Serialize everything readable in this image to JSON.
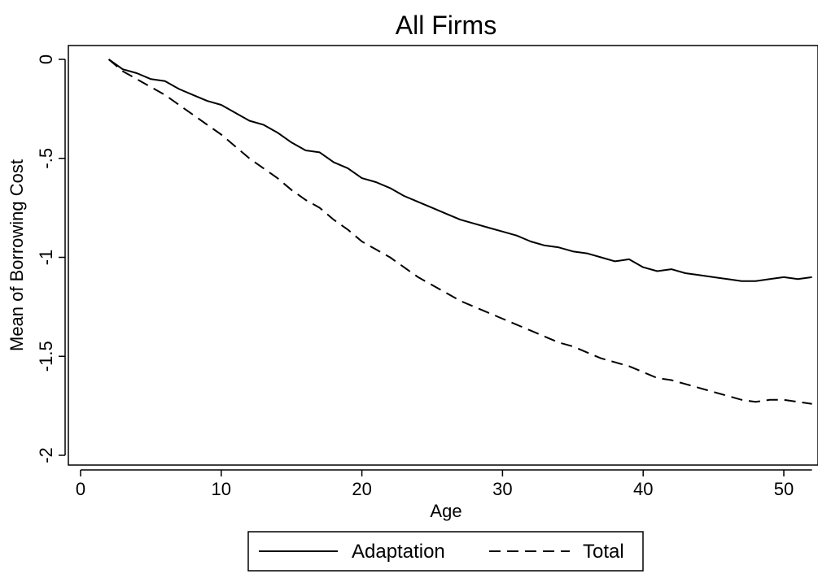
{
  "chart_data": {
    "type": "line",
    "title": "All Firms",
    "xlabel": "Age",
    "ylabel": "Mean of Borrowing Cost",
    "xlim": [
      0,
      52
    ],
    "ylim": [
      -2,
      0
    ],
    "xticks": [
      0,
      10,
      20,
      30,
      40,
      50
    ],
    "xtick_labels": [
      "0",
      "10",
      "20",
      "30",
      "40",
      "50"
    ],
    "yticks": [
      0,
      -0.5,
      -1,
      -1.5,
      -2
    ],
    "ytick_labels": [
      "0",
      "-.5",
      "-1",
      "-1.5",
      "-2"
    ],
    "grid": false,
    "legend_position": "bottom",
    "x": [
      2,
      3,
      4,
      5,
      6,
      7,
      8,
      9,
      10,
      11,
      12,
      13,
      14,
      15,
      16,
      17,
      18,
      19,
      20,
      21,
      22,
      23,
      24,
      25,
      26,
      27,
      28,
      29,
      30,
      31,
      32,
      33,
      34,
      35,
      36,
      37,
      38,
      39,
      40,
      41,
      42,
      43,
      44,
      45,
      46,
      47,
      48,
      49,
      50,
      51,
      52
    ],
    "series": [
      {
        "name": "Adaptation",
        "style": "solid",
        "color": "#000000",
        "values": [
          0,
          -0.05,
          -0.07,
          -0.1,
          -0.11,
          -0.15,
          -0.18,
          -0.21,
          -0.23,
          -0.27,
          -0.31,
          -0.33,
          -0.37,
          -0.42,
          -0.46,
          -0.47,
          -0.52,
          -0.55,
          -0.6,
          -0.62,
          -0.65,
          -0.69,
          -0.72,
          -0.75,
          -0.78,
          -0.81,
          -0.83,
          -0.85,
          -0.87,
          -0.89,
          -0.92,
          -0.94,
          -0.95,
          -0.97,
          -0.98,
          -1.0,
          -1.02,
          -1.01,
          -1.05,
          -1.07,
          -1.06,
          -1.08,
          -1.09,
          -1.1,
          -1.11,
          -1.12,
          -1.12,
          -1.11,
          -1.1,
          -1.11,
          -1.1
        ]
      },
      {
        "name": "Total",
        "style": "dashed",
        "color": "#000000",
        "values": [
          0,
          -0.06,
          -0.1,
          -0.14,
          -0.18,
          -0.23,
          -0.28,
          -0.33,
          -0.38,
          -0.44,
          -0.5,
          -0.55,
          -0.6,
          -0.66,
          -0.71,
          -0.75,
          -0.81,
          -0.86,
          -0.92,
          -0.96,
          -1.0,
          -1.05,
          -1.1,
          -1.14,
          -1.18,
          -1.22,
          -1.25,
          -1.28,
          -1.31,
          -1.34,
          -1.37,
          -1.4,
          -1.43,
          -1.45,
          -1.48,
          -1.51,
          -1.53,
          -1.55,
          -1.58,
          -1.61,
          -1.62,
          -1.64,
          -1.66,
          -1.68,
          -1.7,
          -1.72,
          -1.73,
          -1.72,
          -1.72,
          -1.73,
          -1.74
        ]
      }
    ]
  }
}
